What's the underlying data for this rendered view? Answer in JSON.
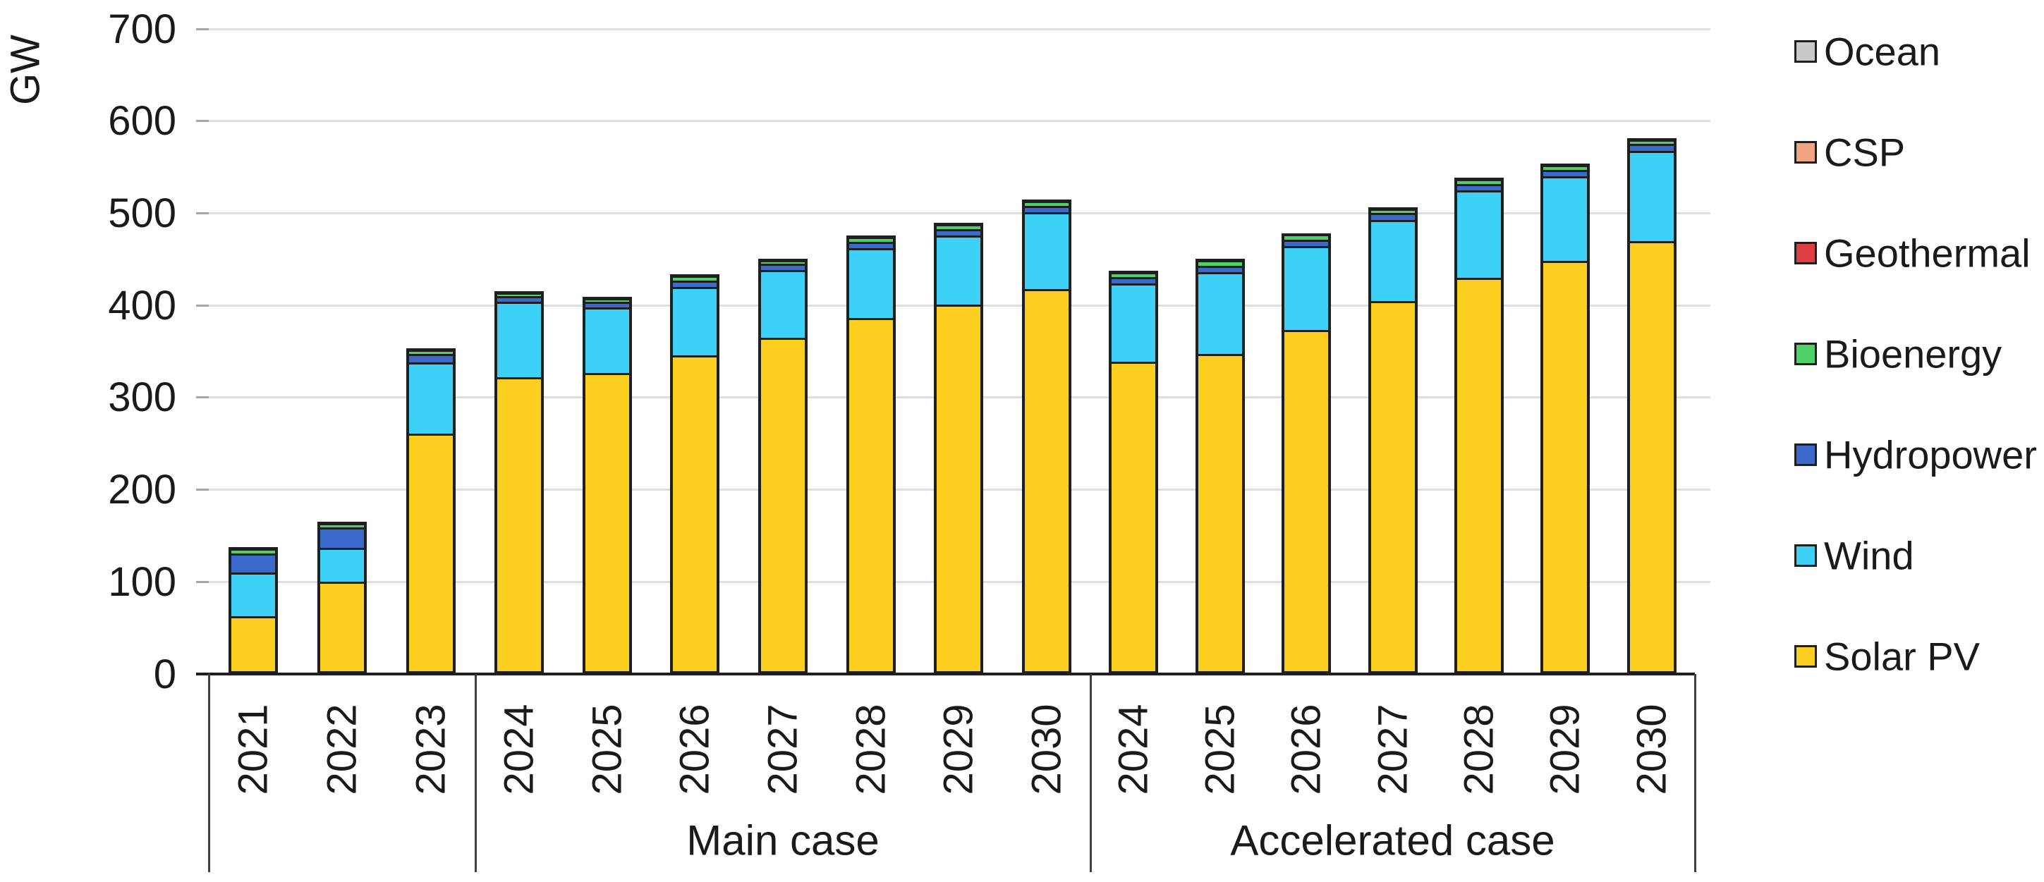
{
  "chart_data": {
    "type": "bar",
    "stacked": true,
    "title": "",
    "ylabel": "GW",
    "unit": "GW",
    "ylim": [
      0,
      700
    ],
    "y_ticks": [
      0,
      100,
      200,
      300,
      400,
      500,
      600,
      700
    ],
    "grid": true,
    "legend_position": "right",
    "legend_top_to_bottom": [
      "Ocean",
      "CSP",
      "Geothermal",
      "Bioenergy",
      "Hydropower",
      "Wind",
      "Solar PV"
    ],
    "stack_order_bottom_to_top": [
      "Solar PV",
      "Wind",
      "Hydropower",
      "Bioenergy",
      "Geothermal",
      "CSP",
      "Ocean"
    ],
    "colors": {
      "Solar PV": "#fbce20",
      "Wind": "#3ed1f7",
      "Hydropower": "#3a6bcc",
      "Bioenergy": "#4fd169",
      "Geothermal": "#dc3e42",
      "CSP": "#f2a583",
      "Ocean": "#c9c9c9",
      "outline": "#1f1f1f",
      "gridline": "#dedede",
      "text": "#1a1a1a"
    },
    "groups": [
      {
        "label": "",
        "bars": [
          {
            "year": "2021",
            "values": {
              "Solar PV": 63,
              "Wind": 47,
              "Hydropower": 21,
              "Bioenergy": 5,
              "Geothermal": 0.5,
              "CSP": 0.5,
              "Ocean": 0.5
            }
          },
          {
            "year": "2022",
            "values": {
              "Solar PV": 100,
              "Wind": 37,
              "Hydropower": 22,
              "Bioenergy": 5,
              "Geothermal": 0.5,
              "CSP": 0.5,
              "Ocean": 0.5
            }
          },
          {
            "year": "2023",
            "values": {
              "Solar PV": 261,
              "Wind": 77,
              "Hydropower": 9,
              "Bioenergy": 5,
              "Geothermal": 0.5,
              "CSP": 0.5,
              "Ocean": 0.5
            }
          }
        ]
      },
      {
        "label": "Main case",
        "bars": [
          {
            "year": "2024",
            "values": {
              "Solar PV": 322,
              "Wind": 82,
              "Hydropower": 6,
              "Bioenergy": 4,
              "Geothermal": 0.5,
              "CSP": 0.5,
              "Ocean": 0.5
            }
          },
          {
            "year": "2025",
            "values": {
              "Solar PV": 327,
              "Wind": 71,
              "Hydropower": 6,
              "Bioenergy": 4,
              "Geothermal": 0.5,
              "CSP": 0.5,
              "Ocean": 0.5
            }
          },
          {
            "year": "2026",
            "values": {
              "Solar PV": 346,
              "Wind": 74,
              "Hydropower": 7,
              "Bioenergy": 5,
              "Geothermal": 0.5,
              "CSP": 0.5,
              "Ocean": 0.5
            }
          },
          {
            "year": "2027",
            "values": {
              "Solar PV": 365,
              "Wind": 73,
              "Hydropower": 7,
              "Bioenergy": 4,
              "Geothermal": 0.5,
              "CSP": 0.5,
              "Ocean": 0.5
            }
          },
          {
            "year": "2028",
            "values": {
              "Solar PV": 386,
              "Wind": 76,
              "Hydropower": 7,
              "Bioenergy": 5,
              "Geothermal": 0.5,
              "CSP": 0.5,
              "Ocean": 0.5
            }
          },
          {
            "year": "2029",
            "values": {
              "Solar PV": 401,
              "Wind": 75,
              "Hydropower": 7,
              "Bioenergy": 5,
              "Geothermal": 0.5,
              "CSP": 0.5,
              "Ocean": 0.5
            }
          },
          {
            "year": "2030",
            "values": {
              "Solar PV": 418,
              "Wind": 83,
              "Hydropower": 7,
              "Bioenergy": 5,
              "Geothermal": 0.5,
              "CSP": 0.5,
              "Ocean": 0.5
            }
          }
        ]
      },
      {
        "label": "Accelerated case",
        "bars": [
          {
            "year": "2024",
            "values": {
              "Solar PV": 339,
              "Wind": 85,
              "Hydropower": 7,
              "Bioenergy": 5,
              "Geothermal": 0.5,
              "CSP": 0.5,
              "Ocean": 0.5
            }
          },
          {
            "year": "2025",
            "values": {
              "Solar PV": 347,
              "Wind": 89,
              "Hydropower": 7,
              "Bioenergy": 6,
              "Geothermal": 0.5,
              "CSP": 0.5,
              "Ocean": 0.5
            }
          },
          {
            "year": "2026",
            "values": {
              "Solar PV": 373,
              "Wind": 91,
              "Hydropower": 7,
              "Bioenergy": 6,
              "Geothermal": 0.5,
              "CSP": 0.5,
              "Ocean": 0.5
            }
          },
          {
            "year": "2027",
            "values": {
              "Solar PV": 405,
              "Wind": 88,
              "Hydropower": 7,
              "Bioenergy": 5,
              "Geothermal": 0.5,
              "CSP": 0.5,
              "Ocean": 0.5
            }
          },
          {
            "year": "2028",
            "values": {
              "Solar PV": 430,
              "Wind": 95,
              "Hydropower": 7,
              "Bioenergy": 5,
              "Geothermal": 0.5,
              "CSP": 0.5,
              "Ocean": 0.5
            }
          },
          {
            "year": "2029",
            "values": {
              "Solar PV": 448,
              "Wind": 92,
              "Hydropower": 7,
              "Bioenergy": 5,
              "Geothermal": 0.5,
              "CSP": 0.5,
              "Ocean": 0.5
            }
          },
          {
            "year": "2030",
            "values": {
              "Solar PV": 470,
              "Wind": 98,
              "Hydropower": 7,
              "Bioenergy": 5,
              "Geothermal": 0.5,
              "CSP": 0.5,
              "Ocean": 0.5
            }
          }
        ]
      }
    ]
  }
}
